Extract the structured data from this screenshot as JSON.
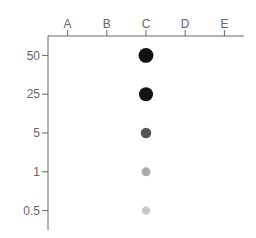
{
  "chart_data": {
    "type": "scatter",
    "categories": [
      "A",
      "B",
      "C",
      "D",
      "E"
    ],
    "y_categories": [
      "50",
      "25",
      "5",
      "1",
      "0.5"
    ],
    "x": [
      "C",
      "C",
      "C",
      "C",
      "C"
    ],
    "y": [
      "50",
      "25",
      "5",
      "1",
      "0.5"
    ],
    "sizes": [
      90,
      80,
      45,
      32,
      28
    ],
    "colors": [
      "#111111",
      "#141414",
      "#555555",
      "#aaaaaa",
      "#c8c8c8"
    ],
    "grid": false
  }
}
